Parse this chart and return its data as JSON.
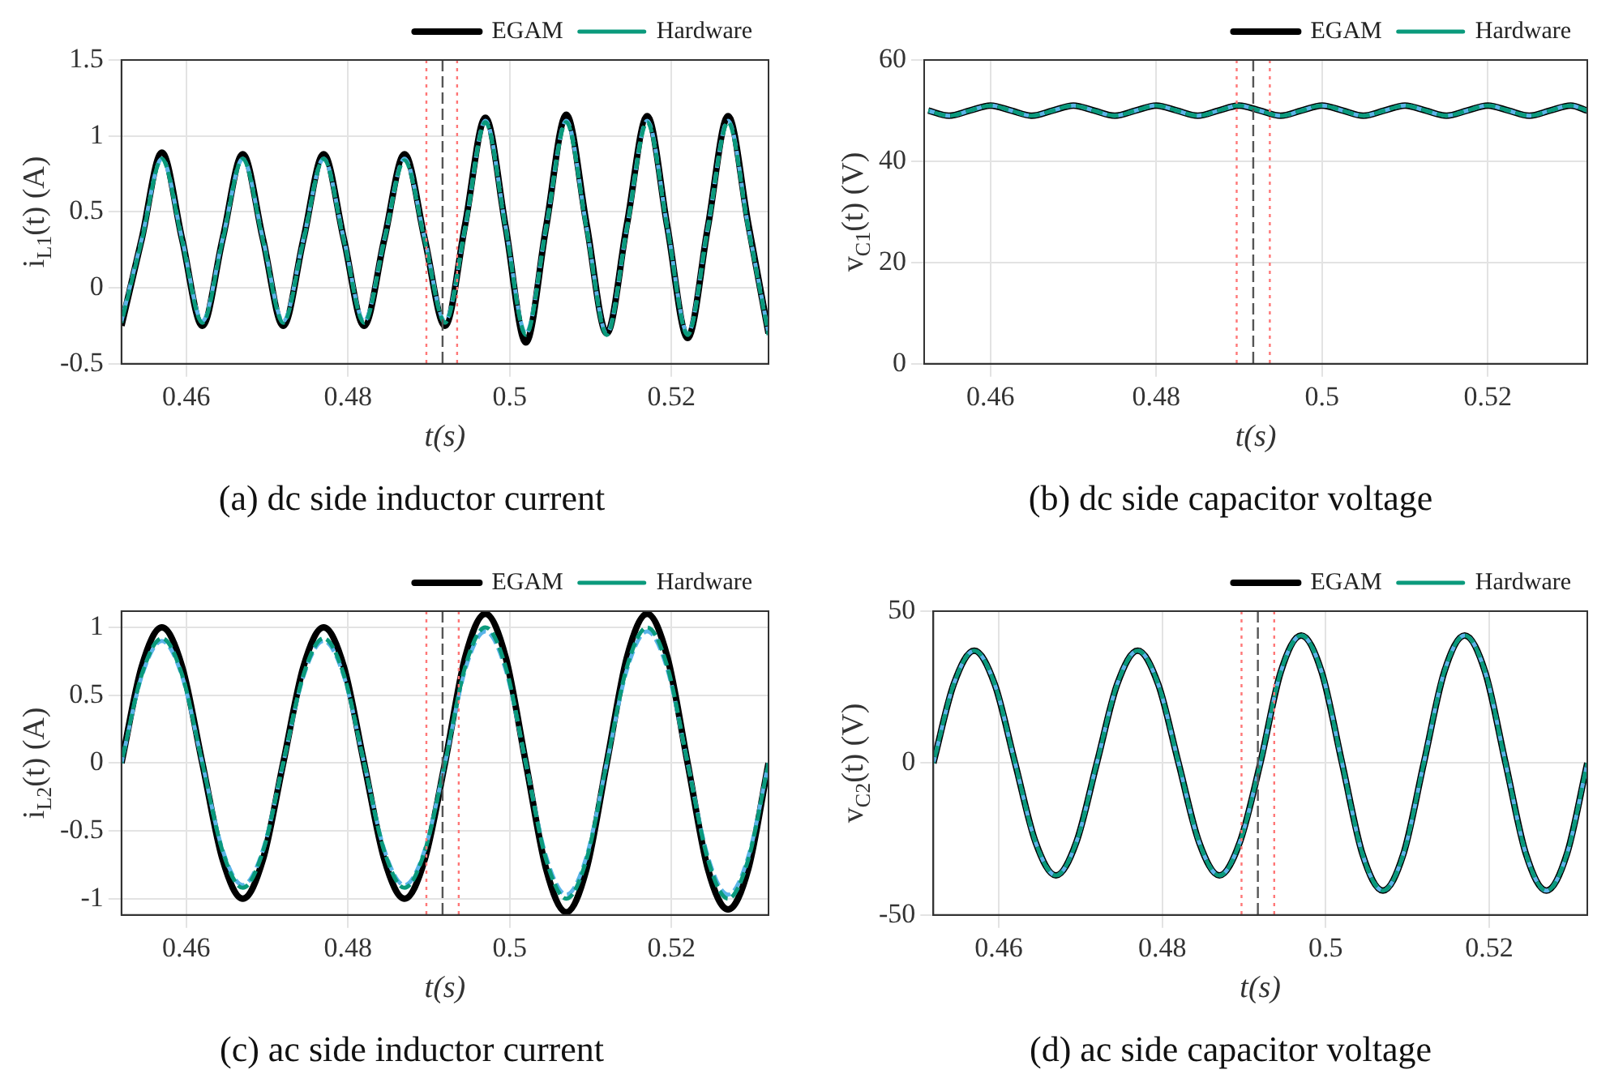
{
  "chart_data": [
    {
      "type": "line",
      "title": "(a) dc side inductor current",
      "xlabel": "t(s)",
      "ylabel": "i$_{L1}$(t) (A)",
      "xlim": [
        0.452,
        0.532
      ],
      "xticks": [
        0.46,
        0.48,
        0.5,
        0.52
      ],
      "ylim": [
        -0.5,
        1.5
      ],
      "yticks": [
        -0.5,
        0,
        0.5,
        1,
        1.5
      ],
      "grid": true,
      "legend": "top",
      "marker": "none",
      "x": [
        0.452,
        0.4545,
        0.457,
        0.4595,
        0.462,
        0.4645,
        0.467,
        0.4695,
        0.472,
        0.4745,
        0.477,
        0.4795,
        0.482,
        0.4845,
        0.487,
        0.4895,
        0.492,
        0.4945,
        0.497,
        0.4995,
        0.502,
        0.5045,
        0.507,
        0.5095,
        0.512,
        0.5145,
        0.517,
        0.5195,
        0.522,
        0.5245,
        0.527,
        0.5295,
        0.532
      ],
      "series": [
        {
          "name": "EGAM",
          "color": "#000000",
          "line_style": "solid",
          "values": [
            -0.25,
            0.32,
            0.89,
            0.32,
            -0.25,
            0.32,
            0.88,
            0.32,
            -0.25,
            0.32,
            0.88,
            0.32,
            -0.25,
            0.32,
            0.88,
            0.32,
            -0.25,
            0.42,
            1.12,
            0.4,
            -0.36,
            0.4,
            1.14,
            0.42,
            -0.3,
            0.42,
            1.13,
            0.4,
            -0.33,
            0.4,
            1.13,
            0.42,
            -0.3
          ]
        },
        {
          "color": "#5ab4e8",
          "line_style": "dashed",
          "values": [
            -0.22,
            0.32,
            0.85,
            0.32,
            -0.22,
            0.32,
            0.85,
            0.32,
            -0.22,
            0.32,
            0.85,
            0.32,
            -0.22,
            0.32,
            0.85,
            0.32,
            -0.22,
            0.4,
            1.1,
            0.4,
            -0.3,
            0.4,
            1.1,
            0.4,
            -0.3,
            0.4,
            1.1,
            0.4,
            -0.3,
            0.4,
            1.1,
            0.4,
            -0.3
          ]
        },
        {
          "name": "Hardware",
          "color": "#0a9a7c",
          "line_style": "dashed",
          "values": [
            -0.23,
            0.31,
            0.85,
            0.31,
            -0.23,
            0.31,
            0.85,
            0.31,
            -0.23,
            0.31,
            0.85,
            0.31,
            -0.23,
            0.31,
            0.84,
            0.31,
            -0.23,
            0.39,
            1.09,
            0.39,
            -0.31,
            0.39,
            1.09,
            0.39,
            -0.31,
            0.39,
            1.09,
            0.39,
            -0.31,
            0.39,
            1.09,
            0.39,
            -0.31
          ]
        }
      ],
      "ref_lines": [
        {
          "axis": "x",
          "value": 0.4897,
          "color": "#ff7777",
          "line_style": "dotted"
        },
        {
          "axis": "x",
          "value": 0.4917,
          "color": "#555555",
          "line_style": "dashed"
        },
        {
          "axis": "x",
          "value": 0.4935,
          "color": "#ff7777",
          "line_style": "dotted"
        }
      ]
    },
    {
      "type": "line",
      "title": "(b) dc side capacitor voltage",
      "xlabel": "t(s)",
      "ylabel": "v$_{C1}$(t) (V)",
      "xlim": [
        0.452,
        0.532
      ],
      "xticks": [
        0.46,
        0.48,
        0.5,
        0.52
      ],
      "ylim": [
        0,
        60
      ],
      "yticks": [
        0,
        20,
        40,
        60
      ],
      "grid": true,
      "legend": "top",
      "marker": "none",
      "x": [
        0.4525,
        0.455,
        0.4575,
        0.46,
        0.4625,
        0.465,
        0.4675,
        0.47,
        0.4725,
        0.475,
        0.4775,
        0.48,
        0.4825,
        0.485,
        0.4875,
        0.49,
        0.4925,
        0.495,
        0.4975,
        0.5,
        0.5025,
        0.505,
        0.5075,
        0.51,
        0.5125,
        0.515,
        0.5175,
        0.52,
        0.5225,
        0.525,
        0.5275,
        0.53,
        0.532
      ],
      "series": [
        {
          "name": "EGAM",
          "color": "#000000",
          "line_style": "solid",
          "values": [
            50,
            49,
            50,
            51,
            50,
            49,
            50,
            51,
            50,
            49,
            50,
            51,
            50,
            49,
            50,
            51,
            50,
            49,
            50,
            51,
            50,
            49,
            50,
            51,
            50,
            49,
            50,
            51,
            50,
            49,
            50,
            51,
            50
          ]
        },
        {
          "color": "#5ab4e8",
          "line_style": "dashed",
          "values": [
            50,
            49,
            50,
            51,
            50,
            49,
            50,
            51,
            50,
            49,
            50,
            51,
            50,
            49,
            50,
            51,
            50,
            49,
            50,
            51,
            50,
            49,
            50,
            51,
            50,
            49,
            50,
            51,
            50,
            49,
            50,
            51,
            50
          ]
        },
        {
          "name": "Hardware",
          "color": "#0a9a7c",
          "line_style": "dashed",
          "values": [
            50,
            49,
            50,
            51,
            50,
            49,
            50,
            51,
            50,
            49,
            50,
            51,
            50,
            49,
            50,
            51,
            50,
            49,
            50,
            51,
            50,
            49,
            50,
            51,
            50,
            49,
            50,
            51,
            50,
            49,
            50,
            51,
            50
          ]
        }
      ],
      "ref_lines": [
        {
          "axis": "x",
          "value": 0.4897,
          "color": "#ff7777",
          "line_style": "dotted"
        },
        {
          "axis": "x",
          "value": 0.4917,
          "color": "#555555",
          "line_style": "dashed"
        },
        {
          "axis": "x",
          "value": 0.4937,
          "color": "#ff7777",
          "line_style": "dotted"
        }
      ]
    },
    {
      "type": "line",
      "title": "(c) ac side inductor current",
      "xlabel": "t(s)",
      "ylabel": "i$_{L2}$(t) (A)",
      "xlim": [
        0.452,
        0.532
      ],
      "xticks": [
        0.46,
        0.48,
        0.5,
        0.52
      ],
      "ylim": [
        -1.12,
        1.12
      ],
      "yticks": [
        -1,
        -0.5,
        0,
        0.5,
        1
      ],
      "grid": true,
      "legend": "top",
      "marker": "none",
      "x": [
        0.452,
        0.4545,
        0.457,
        0.4595,
        0.462,
        0.4645,
        0.467,
        0.4695,
        0.472,
        0.4745,
        0.477,
        0.4795,
        0.482,
        0.4845,
        0.487,
        0.4895,
        0.492,
        0.4945,
        0.497,
        0.4995,
        0.502,
        0.5045,
        0.507,
        0.5095,
        0.512,
        0.5145,
        0.517,
        0.5195,
        0.522,
        0.5245,
        0.527,
        0.5295,
        0.532
      ],
      "series": [
        {
          "name": "EGAM",
          "color": "#000000",
          "line_style": "solid",
          "values": [
            0,
            0.71,
            1.0,
            0.71,
            0,
            -0.71,
            -1.0,
            -0.71,
            0,
            0.71,
            1.0,
            0.71,
            0,
            -0.71,
            -1.0,
            -0.71,
            0,
            0.78,
            1.1,
            0.78,
            0,
            -0.78,
            -1.1,
            -0.78,
            0,
            0.78,
            1.1,
            0.78,
            0,
            -0.78,
            -1.08,
            -0.78,
            0
          ]
        },
        {
          "color": "#5ab4e8",
          "line_style": "dashed",
          "values": [
            0,
            0.64,
            0.9,
            0.64,
            0,
            -0.64,
            -0.9,
            -0.64,
            0,
            0.64,
            0.9,
            0.64,
            0,
            -0.64,
            -0.9,
            -0.64,
            0,
            0.69,
            0.97,
            0.69,
            0,
            -0.69,
            -0.97,
            -0.69,
            0,
            0.69,
            0.97,
            0.69,
            0,
            -0.69,
            -0.97,
            -0.69,
            0
          ]
        },
        {
          "name": "Hardware",
          "color": "#0a9a7c",
          "line_style": "dashed",
          "values": [
            0,
            0.65,
            0.92,
            0.65,
            0,
            -0.65,
            -0.92,
            -0.65,
            0,
            0.65,
            0.92,
            0.65,
            0,
            -0.65,
            -0.92,
            -0.65,
            0,
            0.71,
            1.0,
            0.71,
            0,
            -0.71,
            -1.0,
            -0.71,
            0,
            0.71,
            1.0,
            0.71,
            0,
            -0.71,
            -1.0,
            -0.71,
            0
          ]
        }
      ],
      "ref_lines": [
        {
          "axis": "x",
          "value": 0.4897,
          "color": "#ff7777",
          "line_style": "dotted"
        },
        {
          "axis": "x",
          "value": 0.4917,
          "color": "#555555",
          "line_style": "dashed"
        },
        {
          "axis": "x",
          "value": 0.4937,
          "color": "#ff7777",
          "line_style": "dotted"
        }
      ]
    },
    {
      "type": "line",
      "title": "(d) ac side capacitor voltage",
      "xlabel": "t(s)",
      "ylabel": "v$_{C2}$(t) (V)",
      "xlim": [
        0.452,
        0.532
      ],
      "xticks": [
        0.46,
        0.48,
        0.5,
        0.52
      ],
      "ylim": [
        -50,
        50
      ],
      "yticks": [
        -50,
        0,
        50
      ],
      "grid": true,
      "legend": "top",
      "marker": "none",
      "x": [
        0.452,
        0.4545,
        0.457,
        0.4595,
        0.462,
        0.4645,
        0.467,
        0.4695,
        0.472,
        0.4745,
        0.477,
        0.4795,
        0.482,
        0.4845,
        0.487,
        0.4895,
        0.492,
        0.4945,
        0.497,
        0.4995,
        0.502,
        0.5045,
        0.507,
        0.5095,
        0.512,
        0.5145,
        0.517,
        0.5195,
        0.522,
        0.5245,
        0.527,
        0.5295,
        0.532
      ],
      "series": [
        {
          "name": "EGAM",
          "color": "#000000",
          "line_style": "solid",
          "values": [
            0,
            26,
            37,
            26,
            0,
            -26,
            -37,
            -26,
            0,
            26,
            37,
            26,
            0,
            -26,
            -37,
            -26,
            0,
            30,
            42,
            30,
            0,
            -30,
            -42,
            -30,
            0,
            30,
            42,
            30,
            0,
            -30,
            -42,
            -30,
            0
          ]
        },
        {
          "color": "#5ab4e8",
          "line_style": "dashed",
          "values": [
            0,
            26,
            37,
            26,
            0,
            -26,
            -37,
            -26,
            0,
            26,
            37,
            26,
            0,
            -26,
            -37,
            -26,
            0,
            30,
            42,
            30,
            0,
            -30,
            -42,
            -30,
            0,
            30,
            42,
            30,
            0,
            -30,
            -42,
            -30,
            0
          ]
        },
        {
          "name": "Hardware",
          "color": "#0a9a7c",
          "line_style": "dashed",
          "values": [
            0,
            26,
            37,
            26,
            0,
            -26,
            -37,
            -26,
            0,
            26,
            37,
            26,
            0,
            -26,
            -37,
            -26,
            0,
            30,
            42,
            30,
            0,
            -30,
            -42,
            -30,
            0,
            30,
            42,
            30,
            0,
            -30,
            -42,
            -30,
            0
          ]
        }
      ],
      "ref_lines": [
        {
          "axis": "x",
          "value": 0.4897,
          "color": "#ff7777",
          "line_style": "dotted"
        },
        {
          "axis": "x",
          "value": 0.4917,
          "color": "#555555",
          "line_style": "dashed"
        },
        {
          "axis": "x",
          "value": 0.4937,
          "color": "#ff7777",
          "line_style": "dotted"
        }
      ]
    }
  ]
}
